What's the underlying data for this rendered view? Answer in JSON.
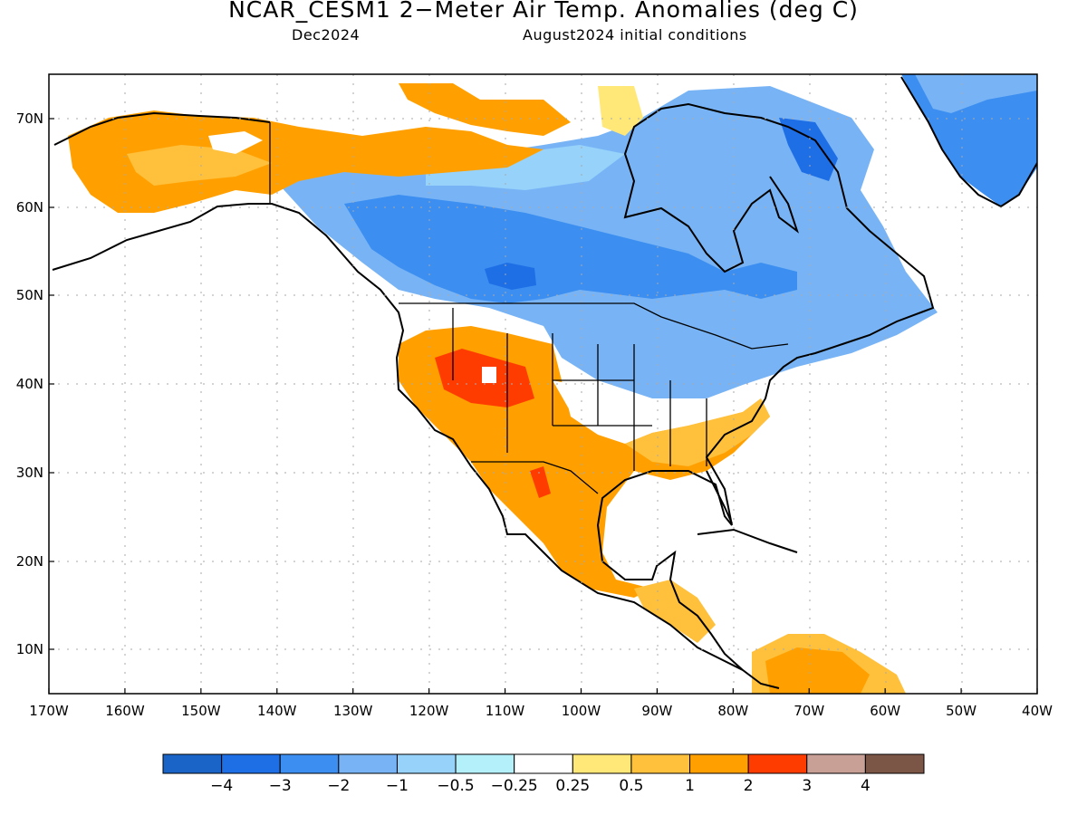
{
  "title": "NCAR_CESM1 2−Meter Air Temp. Anomalies (deg C)",
  "subtitle_left": "Dec2024",
  "subtitle_right": "August2024 initial conditions",
  "map": {
    "lat_ticks": [
      "70N",
      "60N",
      "50N",
      "40N",
      "30N",
      "20N",
      "10N"
    ],
    "lon_ticks": [
      "170W",
      "160W",
      "150W",
      "140W",
      "130W",
      "120W",
      "110W",
      "100W",
      "90W",
      "80W",
      "70W",
      "60W",
      "50W",
      "40W"
    ],
    "extent": {
      "lon_min": -170,
      "lon_max": -40,
      "lat_min": 5,
      "lat_max": 75
    },
    "grid": "dotted"
  },
  "colorbar": {
    "labels": [
      "−4",
      "−3",
      "−2",
      "−1",
      "−0.5",
      "−0.25",
      "0.25",
      "0.5",
      "1",
      "2",
      "3",
      "4"
    ],
    "colors": [
      "#1a64c8",
      "#1e6ee6",
      "#3c8ef0",
      "#78b4f5",
      "#96d2fa",
      "#b4f0fa",
      "#ffffff",
      "#ffe878",
      "#ffc03c",
      "#ffa000",
      "#ff3c00",
      "#c8a096",
      "#7b5546"
    ]
  }
}
